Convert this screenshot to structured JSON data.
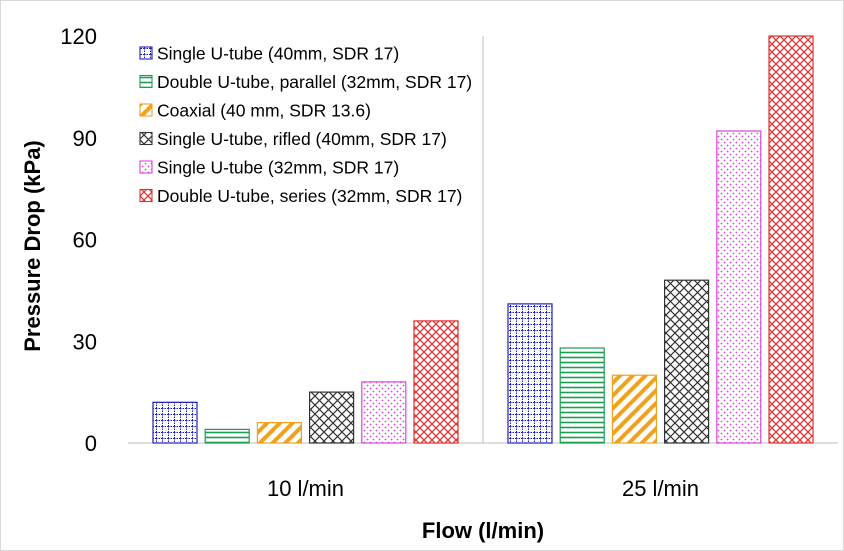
{
  "chart_data": {
    "type": "bar",
    "categories": [
      "10 l/min",
      "25 l/min"
    ],
    "series": [
      {
        "name": "Single U-tube (40mm, SDR 17)",
        "values": [
          12,
          41
        ],
        "color": "#1f1fbf",
        "pattern": "grid"
      },
      {
        "name": "Double U-tube, parallel (32mm, SDR 17)",
        "values": [
          4,
          28
        ],
        "color": "#1a9e50",
        "pattern": "horizontal"
      },
      {
        "name": "Coaxial (40 mm, SDR 13.6)",
        "values": [
          6,
          20
        ],
        "color": "#f2a11c",
        "pattern": "diagonal"
      },
      {
        "name": "Single U-tube, rifled (40mm, SDR 17)",
        "values": [
          15,
          48
        ],
        "color": "#333333",
        "pattern": "diamond"
      },
      {
        "name": "Single U-tube (32mm, SDR 17)",
        "values": [
          18,
          92
        ],
        "color": "#d946d9",
        "pattern": "dots"
      },
      {
        "name": "Double U-tube, series (32mm, SDR 17)",
        "values": [
          36,
          120
        ],
        "color": "#e03131",
        "pattern": "crosshatch"
      }
    ],
    "xlabel": "Flow (l/min)",
    "ylabel": "Pressure Drop (kPa)",
    "ylim": [
      0,
      120
    ],
    "yticks": [
      "0",
      "30",
      "60",
      "90",
      "120"
    ],
    "grid": "vertical category divider only",
    "legend_position": "top-left"
  }
}
